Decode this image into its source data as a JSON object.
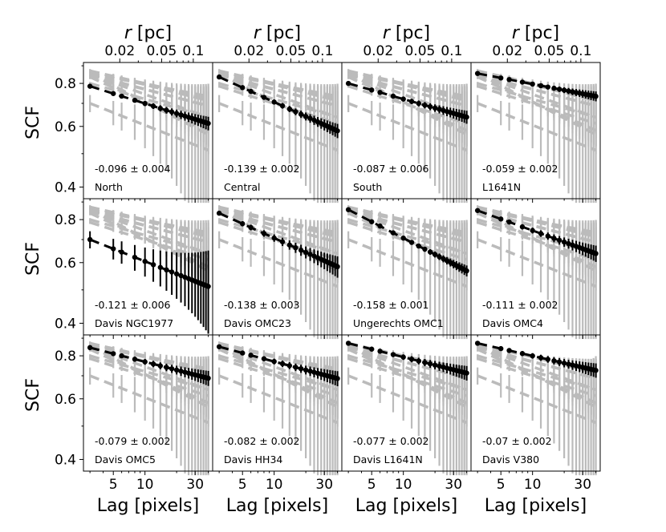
{
  "chart_data": {
    "type": "line",
    "xlabel": "Lag [pixels]",
    "ylabel": "SCF",
    "top_label_italic": "r",
    "top_label_rest": " [pc]",
    "xscale": "log",
    "yscale": "log",
    "xlim": [
      2.6,
      44
    ],
    "ylim": [
      0.37,
      0.92
    ],
    "x_ticks": [
      5,
      10,
      30
    ],
    "x_tick_labels": [
      "5",
      "10",
      "30"
    ],
    "top_ticks": [
      0.02,
      0.05,
      0.1
    ],
    "top_tick_labels": [
      "0.02",
      "0.05",
      "0.1"
    ],
    "y_ticks": [
      0.4,
      0.6,
      0.8
    ],
    "y_tick_labels": [
      "0.4",
      "0.6",
      "0.8"
    ],
    "grid": false,
    "highlight_color": "#000000",
    "background_color": "#bbbbbb",
    "panels": [
      {
        "name": "North",
        "slope": "-0.096 ± 0.004",
        "a": 0.785,
        "b": -0.096,
        "err": 0.008
      },
      {
        "name": "Central",
        "slope": "-0.139 ± 0.002",
        "a": 0.835,
        "b": -0.139,
        "err": 0.008
      },
      {
        "name": "South",
        "slope": "-0.087 ± 0.006",
        "a": 0.8,
        "b": -0.087,
        "err": 0.008
      },
      {
        "name": "L1641N",
        "slope": "-0.059 ± 0.002",
        "a": 0.855,
        "b": -0.059,
        "err": 0.007
      },
      {
        "name": "Davis NGC1977",
        "slope": "-0.121 ± 0.006",
        "a": 0.7,
        "b": -0.121,
        "err": 0.04
      },
      {
        "name": "Davis OMC23",
        "slope": "-0.138 ± 0.003",
        "a": 0.835,
        "b": -0.138,
        "err": 0.012
      },
      {
        "name": "Ungerechts OMC1",
        "slope": "-0.158 ± 0.001",
        "a": 0.855,
        "b": -0.158,
        "err": 0.006
      },
      {
        "name": "Davis OMC4",
        "slope": "-0.111 ± 0.002",
        "a": 0.85,
        "b": -0.111,
        "err": 0.01
      },
      {
        "name": "Davis OMC5",
        "slope": "-0.079 ± 0.002",
        "a": 0.845,
        "b": -0.079,
        "err": 0.01
      },
      {
        "name": "Davis HH34",
        "slope": "-0.082 ± 0.002",
        "a": 0.85,
        "b": -0.082,
        "err": 0.01
      },
      {
        "name": "Davis L1641N",
        "slope": "-0.077 ± 0.002",
        "a": 0.87,
        "b": -0.077,
        "err": 0.01
      },
      {
        "name": "Davis V380",
        "slope": "-0.07 ± 0.002",
        "a": 0.87,
        "b": -0.07,
        "err": 0.01
      }
    ]
  }
}
